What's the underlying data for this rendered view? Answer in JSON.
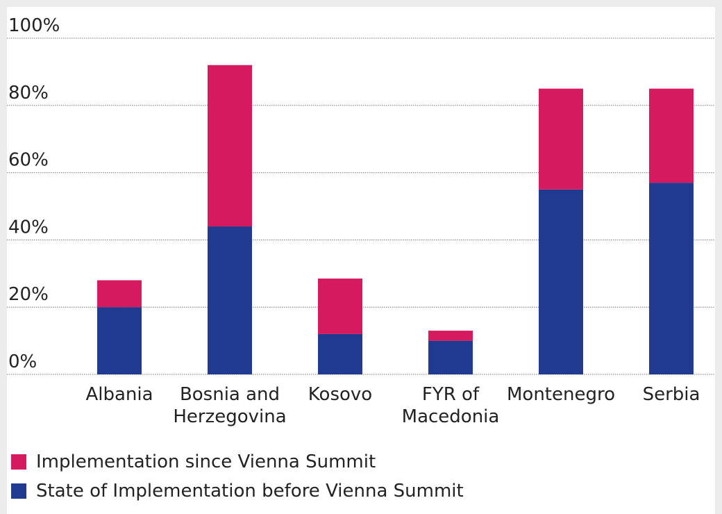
{
  "chart_data": {
    "type": "stacked_bar",
    "categories": [
      "Albania",
      "Bosnia and Herzegovina",
      "Kosovo",
      "FYR of Macedonia",
      "Montenegro",
      "Serbia"
    ],
    "series": [
      {
        "name": "State of Implementation before Vienna Summit",
        "color": "#1f3a8f",
        "values": [
          20,
          44,
          12,
          10,
          55,
          57
        ]
      },
      {
        "name": "Implementation since Vienna Summit",
        "color": "#d61a5f",
        "values": [
          8,
          48,
          16.5,
          3,
          30,
          28
        ]
      }
    ],
    "ylim": [
      0,
      100
    ],
    "yticks": [
      {
        "value": 0,
        "label": "0%"
      },
      {
        "value": 20,
        "label": "20%"
      },
      {
        "value": 40,
        "label": "40%"
      },
      {
        "value": 60,
        "label": "60%"
      },
      {
        "value": 80,
        "label": "80%"
      },
      {
        "value": 100,
        "label": "100%"
      }
    ],
    "grid": true
  }
}
